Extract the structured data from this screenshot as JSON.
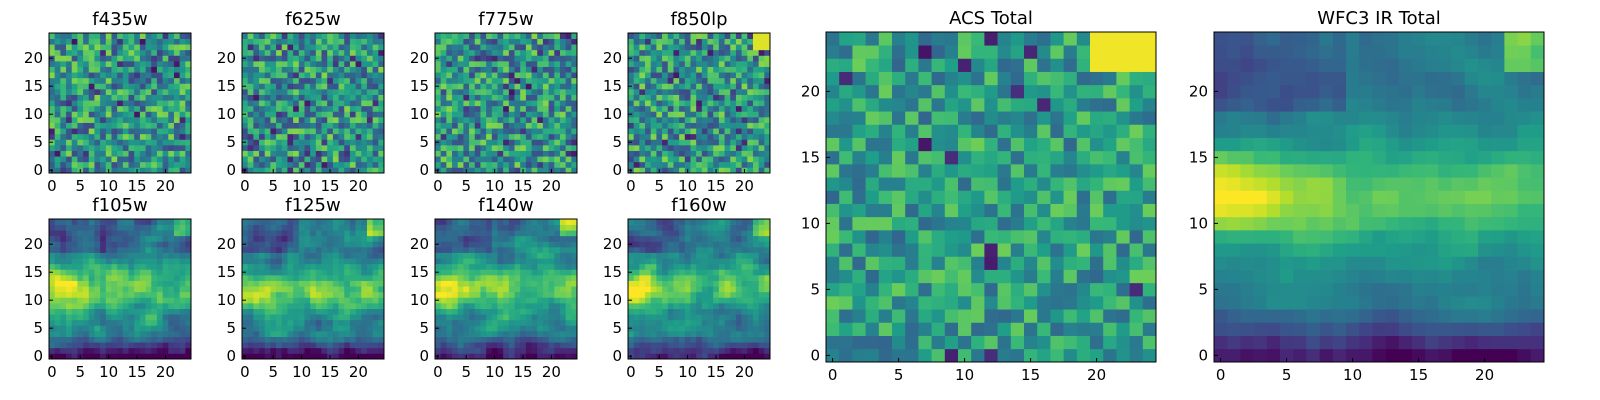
{
  "chart_data": [
    {
      "type": "heatmap",
      "title": "f435w",
      "colormap": "viridis",
      "grid_size": 25,
      "x_ticks": [
        "0",
        "5",
        "10",
        "15",
        "20"
      ],
      "y_ticks": [
        "0",
        "5",
        "10",
        "15",
        "20"
      ],
      "xlim": [
        0,
        25
      ],
      "ylim": [
        0,
        25
      ],
      "grid": false,
      "seed": 11
    },
    {
      "type": "heatmap",
      "title": "f625w",
      "colormap": "viridis",
      "grid_size": 25,
      "x_ticks": [
        "0",
        "5",
        "10",
        "15",
        "20"
      ],
      "y_ticks": [
        "0",
        "5",
        "10",
        "15",
        "20"
      ],
      "xlim": [
        0,
        25
      ],
      "ylim": [
        0,
        25
      ],
      "grid": false,
      "seed": 23
    },
    {
      "type": "heatmap",
      "title": "f775w",
      "colormap": "viridis",
      "grid_size": 25,
      "x_ticks": [
        "0",
        "5",
        "10",
        "15",
        "20"
      ],
      "y_ticks": [
        "0",
        "5",
        "10",
        "15",
        "20"
      ],
      "xlim": [
        0,
        25
      ],
      "ylim": [
        0,
        25
      ],
      "grid": false,
      "seed": 37
    },
    {
      "type": "heatmap",
      "title": "f850lp",
      "colormap": "viridis",
      "grid_size": 25,
      "x_ticks": [
        "0",
        "5",
        "10",
        "15",
        "20"
      ],
      "y_ticks": [
        "0",
        "5",
        "10",
        "15",
        "20"
      ],
      "xlim": [
        0,
        25
      ],
      "ylim": [
        0,
        25
      ],
      "grid": false,
      "seed": 41
    },
    {
      "type": "heatmap",
      "title": "f105w",
      "colormap": "viridis",
      "grid_size": 25,
      "x_ticks": [
        "0",
        "5",
        "10",
        "15",
        "20"
      ],
      "y_ticks": [
        "0",
        "5",
        "10",
        "15",
        "20"
      ],
      "xlim": [
        0,
        25
      ],
      "ylim": [
        0,
        25
      ],
      "grid": false,
      "seed": 53
    },
    {
      "type": "heatmap",
      "title": "f125w",
      "colormap": "viridis",
      "grid_size": 25,
      "x_ticks": [
        "0",
        "5",
        "10",
        "15",
        "20"
      ],
      "y_ticks": [
        "0",
        "5",
        "10",
        "15",
        "20"
      ],
      "xlim": [
        0,
        25
      ],
      "ylim": [
        0,
        25
      ],
      "grid": false,
      "seed": 67
    },
    {
      "type": "heatmap",
      "title": "f140w",
      "colormap": "viridis",
      "grid_size": 25,
      "x_ticks": [
        "0",
        "5",
        "10",
        "15",
        "20"
      ],
      "y_ticks": [
        "0",
        "5",
        "10",
        "15",
        "20"
      ],
      "xlim": [
        0,
        25
      ],
      "ylim": [
        0,
        25
      ],
      "grid": false,
      "seed": 71
    },
    {
      "type": "heatmap",
      "title": "f160w",
      "colormap": "viridis",
      "grid_size": 25,
      "x_ticks": [
        "0",
        "5",
        "10",
        "15",
        "20"
      ],
      "y_ticks": [
        "0",
        "5",
        "10",
        "15",
        "20"
      ],
      "xlim": [
        0,
        25
      ],
      "ylim": [
        0,
        25
      ],
      "grid": false,
      "seed": 83
    },
    {
      "type": "heatmap",
      "title": "ACS Total",
      "colormap": "viridis",
      "grid_size": 25,
      "x_ticks": [
        "0",
        "5",
        "10",
        "15",
        "20"
      ],
      "y_ticks": [
        "0",
        "5",
        "10",
        "15",
        "20"
      ],
      "xlim": [
        0,
        25
      ],
      "ylim": [
        0,
        25
      ],
      "grid": false,
      "seed": 97
    },
    {
      "type": "heatmap",
      "title": "WFC3 IR Total",
      "colormap": "viridis",
      "grid_size": 25,
      "x_ticks": [
        "0",
        "5",
        "10",
        "15",
        "20"
      ],
      "y_ticks": [
        "0",
        "5",
        "10",
        "15",
        "20"
      ],
      "xlim": [
        0,
        25
      ],
      "ylim": [
        0,
        25
      ],
      "grid": false,
      "seed": 101
    }
  ],
  "colors": {
    "axes": "#000000",
    "background": "#ffffff"
  }
}
